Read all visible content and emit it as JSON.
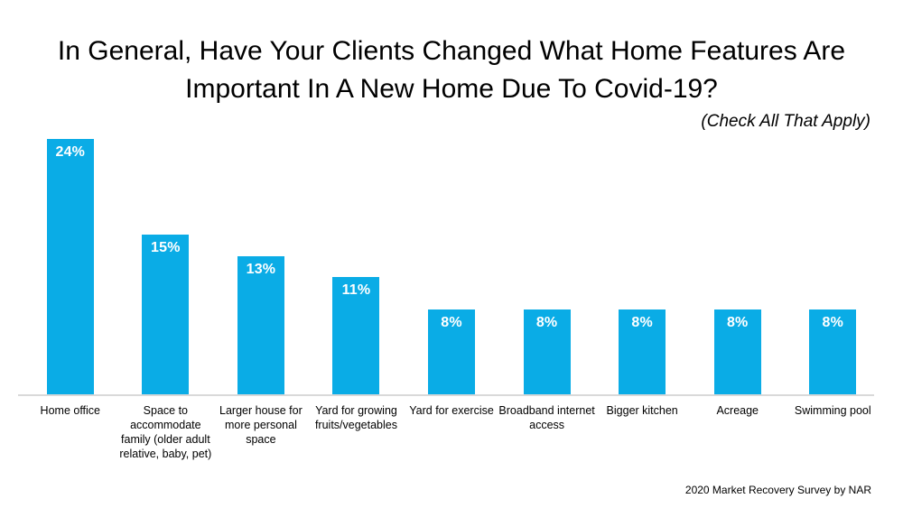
{
  "chart_data": {
    "type": "bar",
    "title": "In General, Have Your Clients Changed What Home Features Are Important In A New Home Due To Covid-19?",
    "subtitle": "(Check All That Apply)",
    "categories": [
      "Home office",
      "Space to accommodate family (older adult relative, baby, pet)",
      "Larger house for more personal space",
      "Yard for growing fruits/vegetables",
      "Yard for exercise",
      "Broadband internet access",
      "Bigger kitchen",
      "Acreage",
      "Swimming pool"
    ],
    "values": [
      24,
      15,
      13,
      11,
      8,
      8,
      8,
      8,
      8
    ],
    "value_labels": [
      "24%",
      "15%",
      "13%",
      "11%",
      "8%",
      "8%",
      "8%",
      "8%",
      "8%"
    ],
    "xlabel": "",
    "ylabel": "",
    "ylim": [
      0,
      24
    ],
    "grid": false,
    "legend_position": "none",
    "bar_color": "#0aace6",
    "value_label_color": "#ffffff",
    "axis_line_color": "#d9d9d9",
    "source": "2020 Market Recovery Survey by NAR"
  }
}
